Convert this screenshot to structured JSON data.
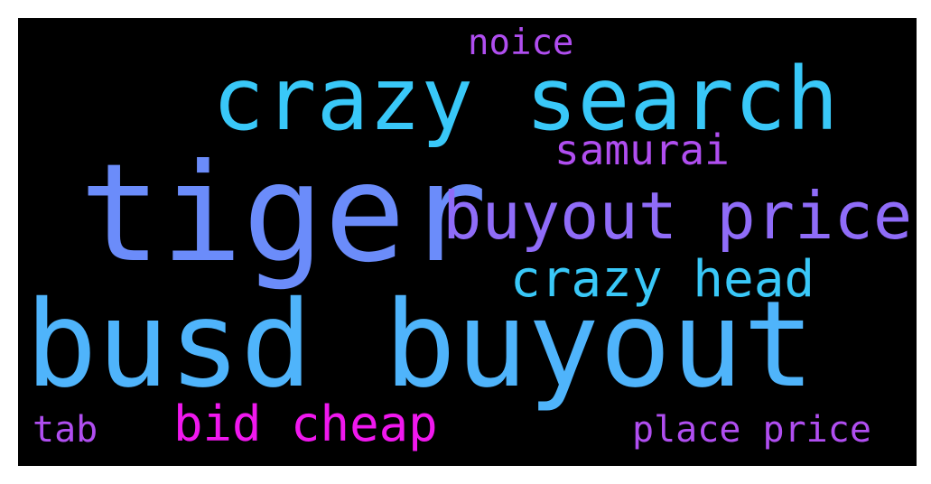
{
  "wordcloud": {
    "background": "#000000",
    "words": [
      {
        "text": "noice",
        "color": "#b04ef0"
      },
      {
        "text": "crazy search",
        "color": "#39c8f8"
      },
      {
        "text": "tiger",
        "color": "#6b8cfa"
      },
      {
        "text": "samurai",
        "color": "#b04ef0"
      },
      {
        "text": "buyout price",
        "color": "#8f6cf8"
      },
      {
        "text": "crazy head",
        "color": "#39c8f8"
      },
      {
        "text": "busd buyout",
        "color": "#4fb4fb"
      },
      {
        "text": "tab",
        "color": "#b04ef0"
      },
      {
        "text": "bid cheap",
        "color": "#f018ee"
      },
      {
        "text": "place price",
        "color": "#b04ef0"
      }
    ]
  }
}
